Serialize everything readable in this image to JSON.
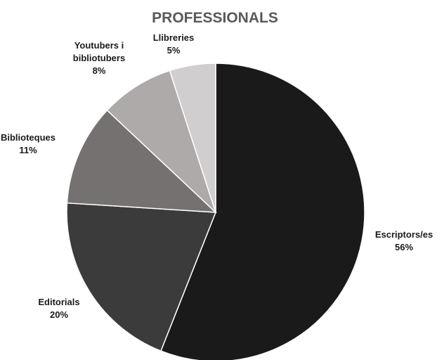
{
  "chart_data": {
    "type": "pie",
    "title": "PROFESSIONALS",
    "slices": [
      {
        "label": [
          "Escriptors/es"
        ],
        "value": 56,
        "value_label": "56%",
        "color": "#1a1a1a"
      },
      {
        "label": [
          "Editorials"
        ],
        "value": 20,
        "value_label": "20%",
        "color": "#3b3b3b"
      },
      {
        "label": [
          "Biblioteques"
        ],
        "value": 11,
        "value_label": "11%",
        "color": "#767171"
      },
      {
        "label": [
          "Youtubers i",
          "bibliotubers"
        ],
        "value": 8,
        "value_label": "8%",
        "color": "#aeaaaa"
      },
      {
        "label": [
          "Llibreries"
        ],
        "value": 5,
        "value_label": "5%",
        "color": "#d0cece"
      }
    ],
    "start_angle_deg": 0,
    "direction": "clockwise",
    "legend": "none",
    "data_labels": "outside"
  }
}
